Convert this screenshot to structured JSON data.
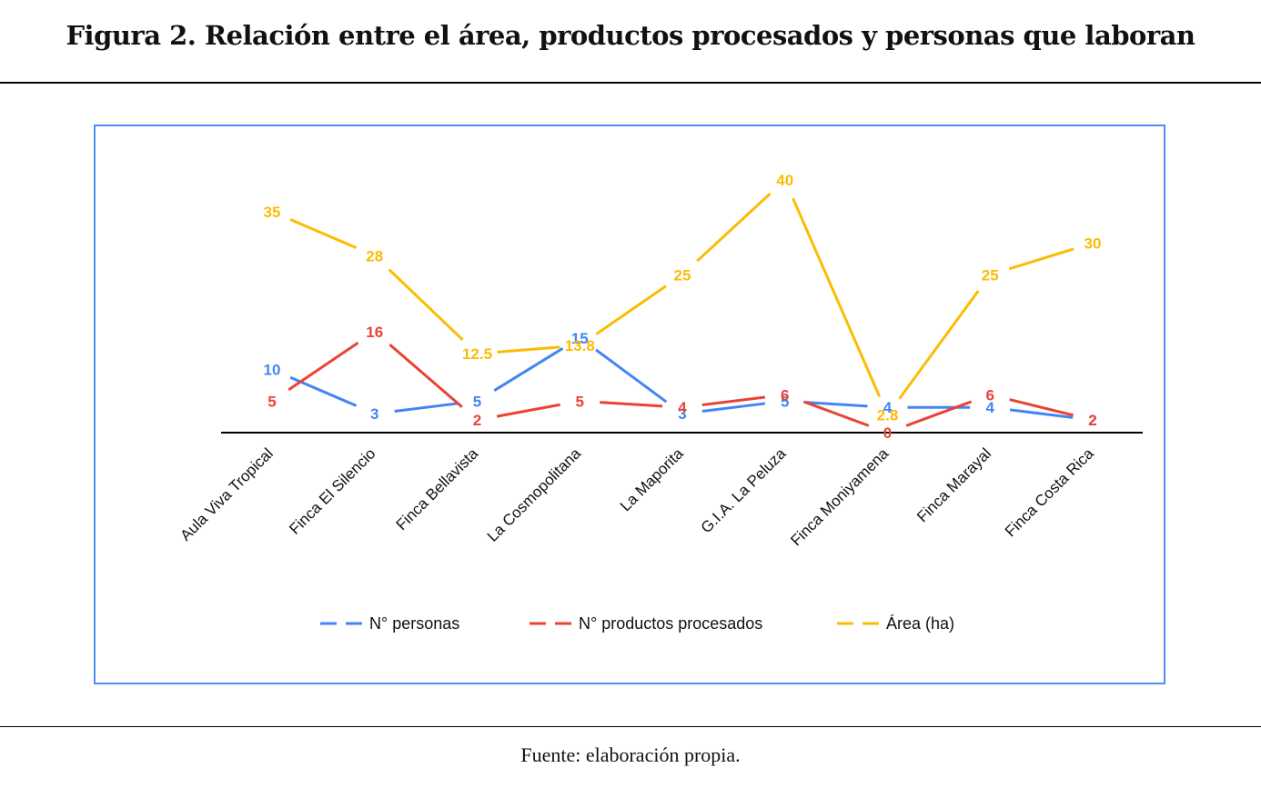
{
  "figure": {
    "title": "Figura 2. Relación entre el área, productos procesados y personas que laboran",
    "source": "Fuente: elaboración propia."
  },
  "chart_data": {
    "type": "line",
    "title": "",
    "xlabel": "",
    "ylabel": "",
    "ylim": [
      0,
      40
    ],
    "grid": false,
    "legend_position": "bottom",
    "data_labels": true,
    "categories": [
      "Aula Viva Tropical",
      "Finca El Silencio",
      "Finca Bellavista",
      "La Cosmopolitana",
      "La Maporita",
      "G.I.A. La Peluza",
      "Finca Moniyamena",
      "Finca Marayal",
      "Finca Costa Rica"
    ],
    "series": [
      {
        "name": "N° personas",
        "color": "#4285f4",
        "values": [
          10,
          3,
          5,
          15,
          3,
          5,
          4,
          4,
          2
        ]
      },
      {
        "name": "N° productos procesados",
        "color": "#ea4335",
        "values": [
          5,
          16,
          2,
          5,
          4,
          6,
          0,
          6,
          2
        ]
      },
      {
        "name": "Área (ha)",
        "color": "#fbbc04",
        "values": [
          35,
          28,
          12.5,
          13.8,
          25,
          40,
          2.8,
          25,
          30
        ]
      }
    ]
  }
}
